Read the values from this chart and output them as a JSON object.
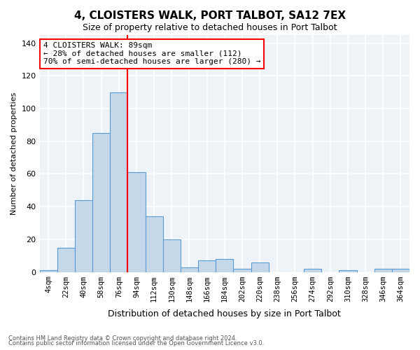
{
  "title": "4, CLOISTERS WALK, PORT TALBOT, SA12 7EX",
  "subtitle": "Size of property relative to detached houses in Port Talbot",
  "xlabel": "Distribution of detached houses by size in Port Talbot",
  "ylabel": "Number of detached properties",
  "categories": [
    "4sqm",
    "22sqm",
    "40sqm",
    "58sqm",
    "76sqm",
    "94sqm",
    "112sqm",
    "130sqm",
    "148sqm",
    "166sqm",
    "184sqm",
    "202sqm",
    "220sqm",
    "238sqm",
    "256sqm",
    "274sqm",
    "292sqm",
    "310sqm",
    "328sqm",
    "346sqm",
    "364sqm"
  ],
  "values": [
    1,
    15,
    44,
    85,
    110,
    61,
    34,
    20,
    3,
    7,
    8,
    2,
    6,
    0,
    0,
    2,
    0,
    1,
    0,
    2,
    2
  ],
  "bar_color": "#c5d8ea",
  "bar_edge_color": "#5b9bd5",
  "background_color": "#eef3f8",
  "grid_color": "#ffffff",
  "vline_x": 4.5,
  "vline_color": "red",
  "annotation_text": "4 CLOISTERS WALK: 89sqm\n← 28% of detached houses are smaller (112)\n70% of semi-detached houses are larger (280) →",
  "ylim": [
    0,
    145
  ],
  "yticks": [
    0,
    20,
    40,
    60,
    80,
    100,
    120,
    140
  ],
  "footer1": "Contains HM Land Registry data © Crown copyright and database right 2024.",
  "footer2": "Contains public sector information licensed under the Open Government Licence v3.0."
}
